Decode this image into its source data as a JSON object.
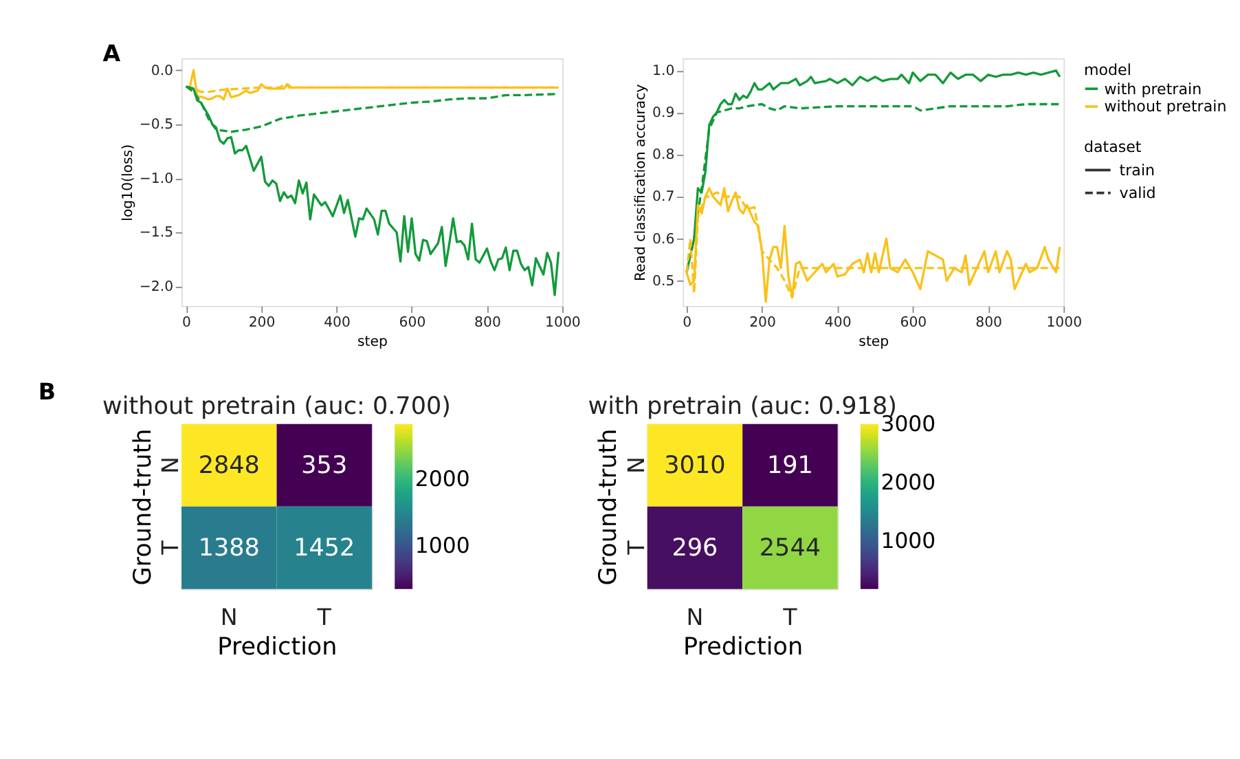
{
  "chart_data": [
    {
      "type": "line",
      "ylabel": "log10(loss)",
      "xlabel": "step",
      "annotations": [
        "A"
      ],
      "legend": false,
      "grid": false,
      "xlim": [
        -12,
        1000
      ],
      "ylim": [
        -2.18,
        0.11
      ],
      "xticks": [
        0,
        200,
        400,
        600,
        800,
        1000
      ],
      "yticks": [
        {
          "value": -2,
          "label": "−2.0"
        },
        {
          "value": -1.5,
          "label": "−1.5"
        },
        {
          "value": -1,
          "label": "−1.0"
        },
        {
          "value": -0.5,
          "label": "−0.5"
        },
        {
          "value": 0,
          "label": "0.0"
        }
      ],
      "series": [
        {
          "color": "#f9c11a",
          "line_style": "dashed",
          "x": [
            0,
            20,
            40,
            60,
            80,
            100,
            150,
            200,
            250,
            265,
            275,
            300,
            400,
            500,
            600,
            700,
            800,
            900,
            990
          ],
          "values": [
            -0.15,
            -0.17,
            -0.2,
            -0.2,
            -0.19,
            -0.18,
            -0.17,
            -0.16,
            -0.16,
            -0.12,
            -0.16,
            -0.16,
            -0.16,
            -0.16,
            -0.16,
            -0.16,
            -0.16,
            -0.16,
            -0.16
          ]
        },
        {
          "color": "#f9c11a",
          "line_style": "solid",
          "x": [
            0,
            10,
            20,
            30,
            45,
            60,
            70,
            80,
            90,
            100,
            110,
            120,
            130,
            140,
            150,
            160,
            170,
            180,
            190,
            200,
            210,
            220,
            240,
            260,
            270,
            280,
            300,
            400,
            500,
            600,
            700,
            800,
            900,
            990
          ],
          "values": [
            -0.15,
            -0.16,
            0.0,
            -0.24,
            -0.25,
            -0.27,
            -0.26,
            -0.24,
            -0.24,
            -0.27,
            -0.17,
            -0.25,
            -0.24,
            -0.23,
            -0.21,
            -0.19,
            -0.21,
            -0.2,
            -0.19,
            -0.13,
            -0.16,
            -0.17,
            -0.17,
            -0.17,
            -0.13,
            -0.16,
            -0.16,
            -0.16,
            -0.16,
            -0.16,
            -0.16,
            -0.16,
            -0.16,
            -0.16
          ]
        },
        {
          "color": "#139a3b",
          "line_style": "dashed",
          "x": [
            0,
            20,
            40,
            60,
            80,
            100,
            120,
            160,
            200,
            250,
            300,
            350,
            400,
            450,
            500,
            550,
            600,
            650,
            700,
            750,
            800,
            850,
            900,
            990
          ],
          "values": [
            -0.15,
            -0.2,
            -0.3,
            -0.45,
            -0.55,
            -0.56,
            -0.57,
            -0.55,
            -0.52,
            -0.45,
            -0.42,
            -0.4,
            -0.38,
            -0.36,
            -0.34,
            -0.32,
            -0.3,
            -0.29,
            -0.27,
            -0.26,
            -0.26,
            -0.23,
            -0.23,
            -0.22
          ]
        },
        {
          "color": "#139a3b",
          "line_style": "solid",
          "x": [
            0,
            20,
            30,
            40,
            50,
            60,
            70,
            80,
            90,
            100,
            110,
            120,
            130,
            140,
            150,
            160,
            180,
            200,
            210,
            220,
            230,
            240,
            250,
            260,
            270,
            280,
            290,
            300,
            310,
            320,
            330,
            340,
            360,
            370,
            390,
            410,
            420,
            430,
            450,
            460,
            470,
            480,
            500,
            510,
            520,
            530,
            540,
            560,
            570,
            580,
            590,
            600,
            610,
            620,
            630,
            640,
            650,
            670,
            680,
            690,
            700,
            710,
            720,
            730,
            740,
            750,
            760,
            770,
            780,
            800,
            810,
            820,
            830,
            840,
            850,
            860,
            870,
            880,
            890,
            900,
            910,
            920,
            930,
            950,
            960,
            970,
            980,
            990
          ],
          "values": [
            -0.15,
            -0.17,
            -0.28,
            -0.3,
            -0.36,
            -0.42,
            -0.5,
            -0.53,
            -0.65,
            -0.68,
            -0.63,
            -0.62,
            -0.77,
            -0.74,
            -0.74,
            -0.7,
            -0.93,
            -0.8,
            -1.03,
            -1.07,
            -1.02,
            -1.05,
            -1.21,
            -1.13,
            -1.18,
            -1.16,
            -1.23,
            -1.02,
            -1.14,
            -1.04,
            -1.38,
            -1.15,
            -1.25,
            -1.22,
            -1.35,
            -1.16,
            -1.32,
            -1.2,
            -1.54,
            -1.37,
            -1.38,
            -1.28,
            -1.38,
            -1.52,
            -1.3,
            -1.3,
            -1.42,
            -1.5,
            -1.77,
            -1.35,
            -1.68,
            -1.37,
            -1.7,
            -1.76,
            -1.57,
            -1.58,
            -1.7,
            -1.6,
            -1.45,
            -1.81,
            -1.6,
            -1.37,
            -1.59,
            -1.58,
            -1.62,
            -1.75,
            -1.42,
            -1.75,
            -1.78,
            -1.65,
            -1.77,
            -1.85,
            -1.75,
            -1.74,
            -1.64,
            -1.85,
            -1.67,
            -1.67,
            -1.79,
            -1.85,
            -1.82,
            -1.99,
            -1.74,
            -1.89,
            -1.69,
            -1.78,
            -2.08,
            -1.68
          ]
        }
      ]
    },
    {
      "type": "line",
      "ylabel": "Read classification accuracy",
      "xlabel": "step",
      "legend_title": "model",
      "annotations": [
        "dataset",
        "train",
        "valid"
      ],
      "legend": "right",
      "grid": false,
      "xlim": [
        -10,
        1000
      ],
      "ylim": [
        0.44,
        1.029
      ],
      "xticks": [
        0,
        200,
        400,
        600,
        800,
        1000
      ],
      "yticks": [
        {
          "value": 0.5,
          "label": "0.5"
        },
        {
          "value": 0.6,
          "label": "0.6"
        },
        {
          "value": 0.7,
          "label": "0.7"
        },
        {
          "value": 0.8,
          "label": "0.8"
        },
        {
          "value": 0.9,
          "label": "0.9"
        },
        {
          "value": 1.0,
          "label": "1.0"
        }
      ],
      "series": [
        {
          "name": "with pretrain",
          "color": "#139a3b",
          "line_style": "solid",
          "x": [
            0,
            10,
            20,
            30,
            40,
            50,
            60,
            70,
            80,
            90,
            100,
            110,
            120,
            130,
            140,
            150,
            160,
            170,
            180,
            190,
            200,
            220,
            230,
            250,
            270,
            290,
            300,
            320,
            330,
            340,
            370,
            380,
            400,
            420,
            440,
            460,
            480,
            500,
            520,
            540,
            560,
            570,
            590,
            600,
            620,
            640,
            660,
            680,
            700,
            720,
            740,
            760,
            780,
            800,
            820,
            840,
            860,
            880,
            900,
            920,
            940,
            960,
            980,
            990
          ],
          "values": [
            0.52,
            0.56,
            0.6,
            0.72,
            0.71,
            0.76,
            0.87,
            0.89,
            0.9,
            0.92,
            0.93,
            0.92,
            0.92,
            0.945,
            0.93,
            0.94,
            0.935,
            0.95,
            0.97,
            0.955,
            0.955,
            0.97,
            0.955,
            0.97,
            0.97,
            0.98,
            0.965,
            0.975,
            0.985,
            0.97,
            0.975,
            0.98,
            0.97,
            0.98,
            0.965,
            0.985,
            0.975,
            0.985,
            0.975,
            0.98,
            0.98,
            0.99,
            0.97,
            0.995,
            0.975,
            0.99,
            0.99,
            0.97,
            0.995,
            0.98,
            0.99,
            0.99,
            0.975,
            0.99,
            0.985,
            0.99,
            0.99,
            0.995,
            0.99,
            0.995,
            0.99,
            0.995,
            1.0,
            0.985
          ]
        },
        {
          "color": "#139a3b",
          "line_style": "dashed",
          "x": [
            0,
            20,
            40,
            60,
            80,
            100,
            120,
            140,
            160,
            200,
            220,
            240,
            260,
            300,
            400,
            500,
            600,
            620,
            700,
            800,
            850,
            900,
            990
          ],
          "values": [
            0.52,
            0.6,
            0.72,
            0.86,
            0.9,
            0.905,
            0.91,
            0.91,
            0.915,
            0.92,
            0.91,
            0.905,
            0.915,
            0.91,
            0.915,
            0.915,
            0.915,
            0.905,
            0.915,
            0.915,
            0.915,
            0.92,
            0.92
          ]
        },
        {
          "name": "without pretrain",
          "color": "#f9c11a",
          "line_style": "solid",
          "x": [
            0,
            10,
            20,
            30,
            40,
            50,
            60,
            70,
            80,
            90,
            100,
            110,
            120,
            130,
            140,
            150,
            160,
            180,
            190,
            200,
            210,
            220,
            230,
            240,
            250,
            260,
            270,
            280,
            290,
            300,
            320,
            340,
            360,
            370,
            390,
            400,
            420,
            440,
            460,
            470,
            480,
            490,
            500,
            510,
            530,
            540,
            560,
            580,
            600,
            620,
            640,
            660,
            680,
            690,
            710,
            730,
            740,
            750,
            770,
            790,
            800,
            820,
            830,
            850,
            860,
            870,
            890,
            900,
            910,
            930,
            950,
            960,
            980,
            990
          ],
          "values": [
            0.52,
            0.49,
            0.5,
            0.68,
            0.66,
            0.7,
            0.72,
            0.7,
            0.69,
            0.68,
            0.72,
            0.665,
            0.69,
            0.71,
            0.67,
            0.66,
            0.68,
            0.64,
            0.63,
            0.57,
            0.45,
            0.55,
            0.58,
            0.58,
            0.53,
            0.63,
            0.51,
            0.46,
            0.54,
            0.545,
            0.5,
            0.52,
            0.54,
            0.52,
            0.54,
            0.51,
            0.515,
            0.54,
            0.55,
            0.52,
            0.565,
            0.52,
            0.565,
            0.52,
            0.6,
            0.53,
            0.52,
            0.55,
            0.52,
            0.48,
            0.57,
            0.56,
            0.55,
            0.5,
            0.53,
            0.52,
            0.56,
            0.49,
            0.53,
            0.57,
            0.52,
            0.57,
            0.52,
            0.57,
            0.55,
            0.48,
            0.52,
            0.54,
            0.52,
            0.53,
            0.58,
            0.55,
            0.52,
            0.58
          ]
        },
        {
          "color": "#f9c11a",
          "line_style": "dashed",
          "x": [
            0,
            10,
            20,
            30,
            50,
            60,
            80,
            100,
            140,
            160,
            180,
            200,
            220,
            240,
            260,
            280,
            300,
            400,
            500,
            600,
            700,
            800,
            900,
            990
          ],
          "values": [
            0.52,
            0.6,
            0.47,
            0.65,
            0.7,
            0.7,
            0.71,
            0.7,
            0.7,
            0.67,
            0.675,
            0.57,
            0.55,
            0.53,
            0.5,
            0.46,
            0.53,
            0.53,
            0.53,
            0.53,
            0.53,
            0.53,
            0.53,
            0.53
          ]
        }
      ]
    },
    {
      "type": "heatmap",
      "title": "without pretrain (auc: 0.700)",
      "annotations": [
        "B"
      ],
      "xlabel": "Prediction",
      "ylabel": "Ground-truth",
      "categories": [
        "N",
        "T"
      ],
      "y_categories": [
        "N",
        "T"
      ],
      "cells": [
        [
          2848,
          353
        ],
        [
          1388,
          1452
        ]
      ],
      "data_labels": true,
      "clim": [
        353,
        2848
      ],
      "cticks": [
        1000,
        2000
      ]
    },
    {
      "type": "heatmap",
      "title": "with pretrain (auc: 0.918)",
      "xlabel": "Prediction",
      "ylabel": "Ground-truth",
      "categories": [
        "N",
        "T"
      ],
      "y_categories": [
        "N",
        "T"
      ],
      "cells": [
        [
          3010,
          191
        ],
        [
          296,
          2544
        ]
      ],
      "data_labels": true,
      "clim": [
        191,
        3010
      ],
      "cticks": [
        1000,
        2000,
        3000
      ]
    }
  ]
}
